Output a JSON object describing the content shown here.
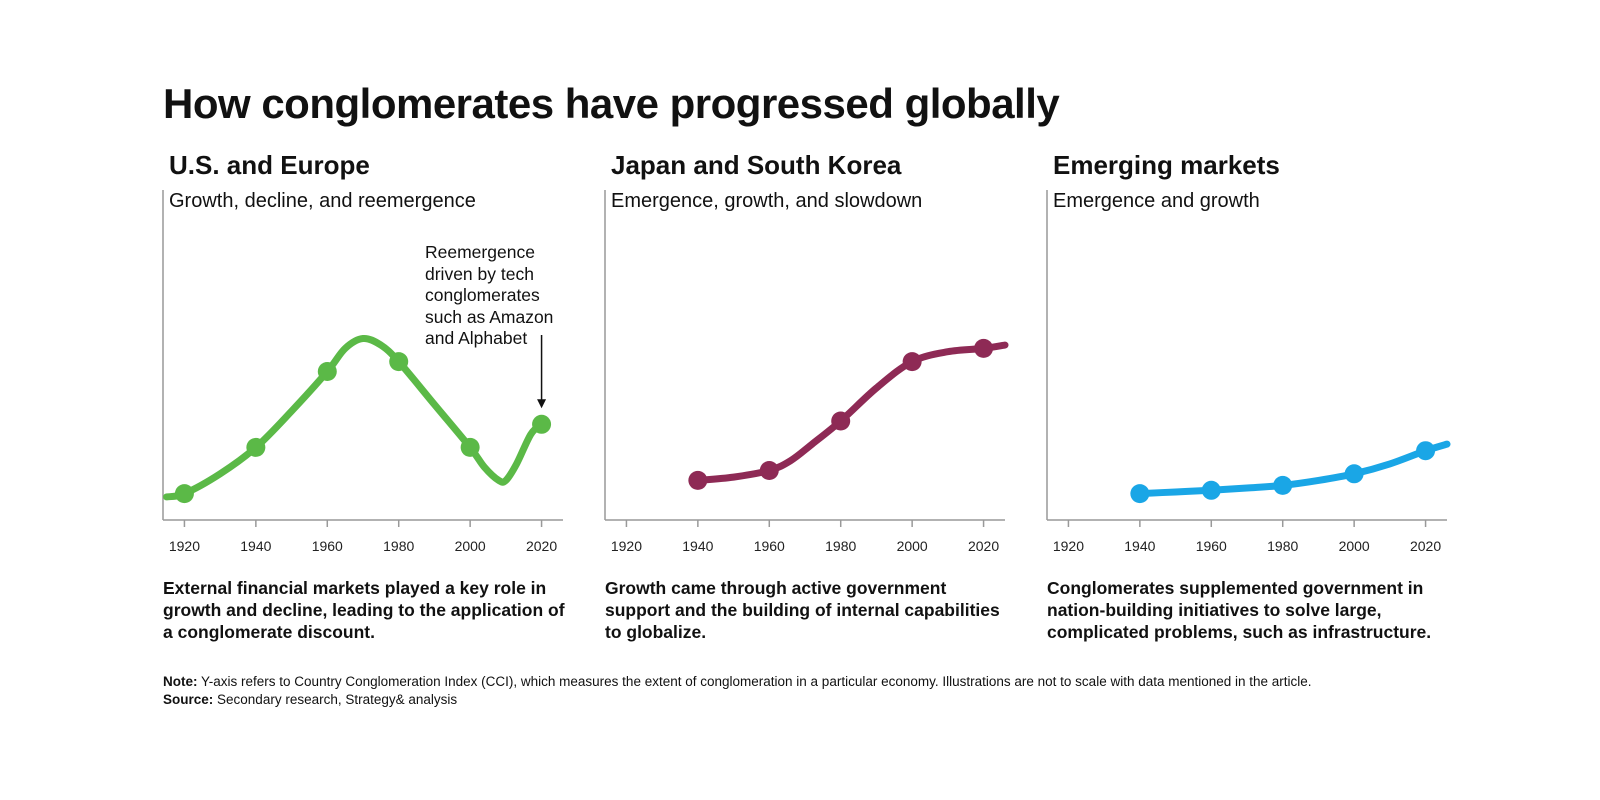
{
  "title": "How conglomerates have progressed globally",
  "chart_data": [
    {
      "type": "line",
      "title": "U.S. and Europe",
      "subtitle": "Growth, decline, and reemergence",
      "xlabel": "",
      "ylabel": "",
      "x_ticks": [
        1920,
        1940,
        1960,
        1980,
        2000,
        2020
      ],
      "xlim": [
        1914,
        2026
      ],
      "ylim": [
        0,
        100
      ],
      "color": "#5bb947",
      "series": [
        {
          "points": [
            [
              1920,
              8
            ],
            [
              1940,
              22
            ],
            [
              1960,
              45
            ],
            [
              1980,
              48
            ],
            [
              2000,
              22
            ],
            [
              2020,
              29
            ]
          ],
          "curve": [
            [
              1915,
              7
            ],
            [
              1920,
              8
            ],
            [
              1930,
              14
            ],
            [
              1940,
              22
            ],
            [
              1950,
              33
            ],
            [
              1960,
              45
            ],
            [
              1965,
              52
            ],
            [
              1970,
              55
            ],
            [
              1975,
              53
            ],
            [
              1980,
              48
            ],
            [
              1990,
              35
            ],
            [
              2000,
              22
            ],
            [
              2004,
              16
            ],
            [
              2008,
              12
            ],
            [
              2010,
              12
            ],
            [
              2013,
              17
            ],
            [
              2017,
              26
            ],
            [
              2020,
              29
            ]
          ]
        }
      ],
      "annotation": "Reemergence driven by tech conglomerates such as Amazon and Alphabet",
      "caption": "External financial markets played a key role in growth and decline, leading to the application of a conglomerate discount."
    },
    {
      "type": "line",
      "title": "Japan and South Korea",
      "subtitle": "Emergence, growth, and slowdown",
      "xlabel": "",
      "ylabel": "",
      "x_ticks": [
        1920,
        1940,
        1960,
        1980,
        2000,
        2020
      ],
      "xlim": [
        1914,
        2026
      ],
      "ylim": [
        0,
        100
      ],
      "color": "#8e2a55",
      "series": [
        {
          "points": [
            [
              1940,
              12
            ],
            [
              1960,
              15
            ],
            [
              1980,
              30
            ],
            [
              2000,
              48
            ],
            [
              2020,
              52
            ]
          ],
          "curve": [
            [
              1940,
              12
            ],
            [
              1950,
              13
            ],
            [
              1960,
              15
            ],
            [
              1966,
              18
            ],
            [
              1972,
              23
            ],
            [
              1980,
              30
            ],
            [
              1990,
              40
            ],
            [
              2000,
              48
            ],
            [
              2010,
              51
            ],
            [
              2020,
              52
            ],
            [
              2026,
              53
            ]
          ]
        }
      ],
      "caption": "Growth came through active government support and the building of internal capabilities to globalize."
    },
    {
      "type": "line",
      "title": "Emerging markets",
      "subtitle": "Emergence and growth",
      "xlabel": "",
      "ylabel": "",
      "x_ticks": [
        1920,
        1940,
        1960,
        1980,
        2000,
        2020
      ],
      "xlim": [
        1914,
        2026
      ],
      "ylim": [
        0,
        100
      ],
      "color": "#1aa6e6",
      "series": [
        {
          "points": [
            [
              1940,
              8
            ],
            [
              1960,
              9
            ],
            [
              1980,
              10.5
            ],
            [
              2000,
              14
            ],
            [
              2020,
              21
            ]
          ],
          "curve": [
            [
              1940,
              8
            ],
            [
              1950,
              8.5
            ],
            [
              1960,
              9
            ],
            [
              1970,
              9.7
            ],
            [
              1980,
              10.5
            ],
            [
              1990,
              12
            ],
            [
              2000,
              14
            ],
            [
              2010,
              17
            ],
            [
              2020,
              21
            ],
            [
              2026,
              23
            ]
          ]
        }
      ],
      "caption": "Conglomerates supplemented government in nation-building initiatives to solve large, complicated problems, such as infrastructure."
    }
  ],
  "footnotes": {
    "note_label": "Note:",
    "note_text": "Y-axis refers to Country Conglomeration Index (CCI), which measures the extent of conglomeration in a particular economy. Illustrations are not to scale with data mentioned in the article.",
    "source_label": "Source:",
    "source_text": "Secondary research, Strategy& analysis"
  }
}
